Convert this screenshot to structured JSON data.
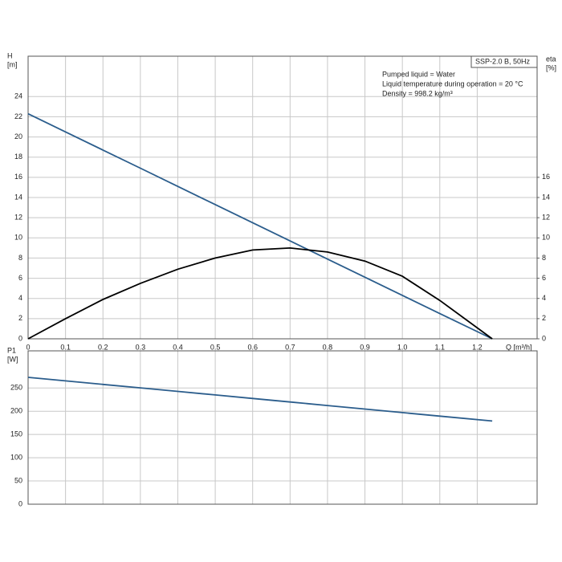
{
  "chart_data": [
    {
      "type": "line",
      "legend_title": "SSP-2.0 B, 50Hz",
      "annotations": [
        "Pumped liquid = Water",
        "Liquid temperature during operation = 20 °C",
        "Density = 998.2 kg/m³"
      ],
      "ylabel": [
        "H",
        "[m]"
      ],
      "y2label": [
        "eta",
        "[%]"
      ],
      "xlabel": "Q [m³/h]",
      "x": [
        0,
        0.1,
        0.2,
        0.3,
        0.4,
        0.5,
        0.6,
        0.7,
        0.8,
        0.9,
        1.0,
        1.1,
        1.24
      ],
      "series": [
        {
          "name": "H",
          "color": "#2b5d8c",
          "values": [
            22.3,
            20.5,
            18.7,
            16.9,
            15.1,
            13.3,
            11.5,
            9.7,
            7.9,
            6.1,
            4.3,
            2.5,
            0
          ]
        },
        {
          "name": "eta",
          "color": "#000000",
          "axis": "y2",
          "values": [
            0,
            2.0,
            3.9,
            5.5,
            6.9,
            8.0,
            8.8,
            9.0,
            8.6,
            7.7,
            6.2,
            3.8,
            0
          ]
        }
      ],
      "xlim": [
        0,
        1.36
      ],
      "xticks": [
        0,
        0.1,
        0.2,
        0.3,
        0.4,
        0.5,
        0.6,
        0.7,
        0.8,
        0.9,
        {
          "value": 1,
          "label": "1.0"
        },
        1.1,
        1.2
      ],
      "ylim": [
        0,
        28
      ],
      "yticks": [
        0,
        2,
        4,
        6,
        8,
        10,
        12,
        14,
        16,
        18,
        20,
        22,
        24
      ],
      "y2lim": [
        0,
        28
      ],
      "y2ticks": [
        0,
        2,
        4,
        6,
        8,
        10,
        12,
        14,
        16
      ],
      "grid": true
    },
    {
      "type": "line",
      "ylabel": [
        "P1",
        "[W]"
      ],
      "x": [
        0,
        0.1,
        0.2,
        0.3,
        0.4,
        0.5,
        0.6,
        0.7,
        0.8,
        0.9,
        1.0,
        1.1,
        1.24
      ],
      "series": [
        {
          "name": "P1",
          "color": "#2b5d8c",
          "values": [
            273,
            265.4,
            257.8,
            250.3,
            242.7,
            235.1,
            227.5,
            219.9,
            212.4,
            204.8,
            197.2,
            189.6,
            179
          ]
        }
      ],
      "xlim": [
        0,
        1.36
      ],
      "ylim": [
        0,
        330
      ],
      "yticks": [
        0,
        50,
        100,
        150,
        200,
        250
      ],
      "grid": true
    }
  ]
}
